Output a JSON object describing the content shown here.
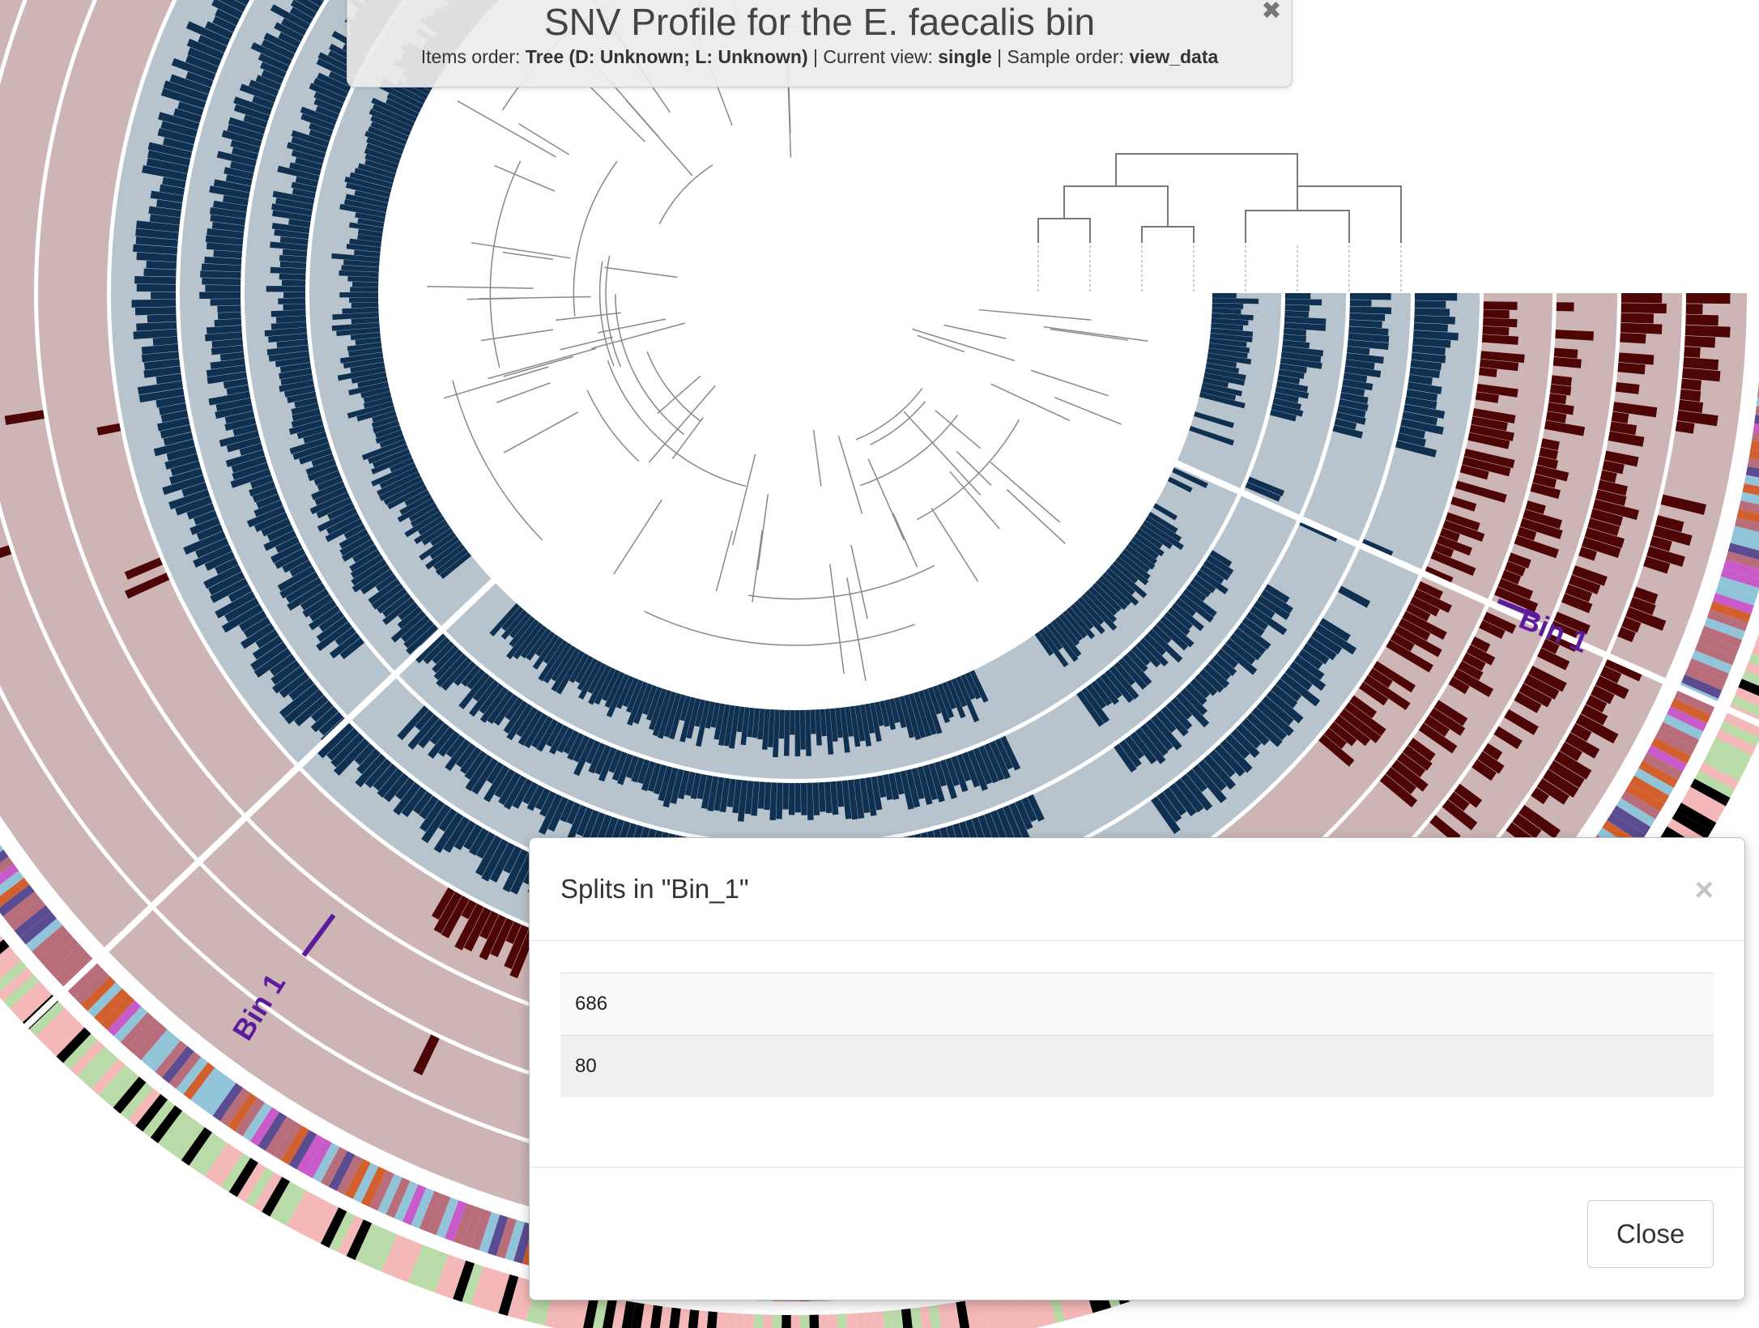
{
  "header": {
    "title": "SNV Profile for the E. faecalis bin",
    "items_order_label": "Items order:",
    "items_order_value": "Tree (D: Unknown; L: Unknown)",
    "sep1": "|",
    "current_view_label": "Current view:",
    "current_view_value": "single",
    "sep2": "|",
    "sample_order_label": "Sample order:",
    "sample_order_value": "view_data"
  },
  "bins": [
    {
      "name": "Bin 1",
      "color": "#5b1b9c"
    },
    {
      "name": "Bin 1",
      "color": "#5b1b9c"
    }
  ],
  "colors": {
    "blue_layer": "#0f3050",
    "blue_bg": "#b8c4cd",
    "red_layer": "#4d0505",
    "red_bg": "#cdb5b6",
    "tree_line": "#888888"
  },
  "modal": {
    "title": "Splits in \"Bin_1\"",
    "splits": [
      "686",
      "80"
    ],
    "close_label": "Close"
  }
}
